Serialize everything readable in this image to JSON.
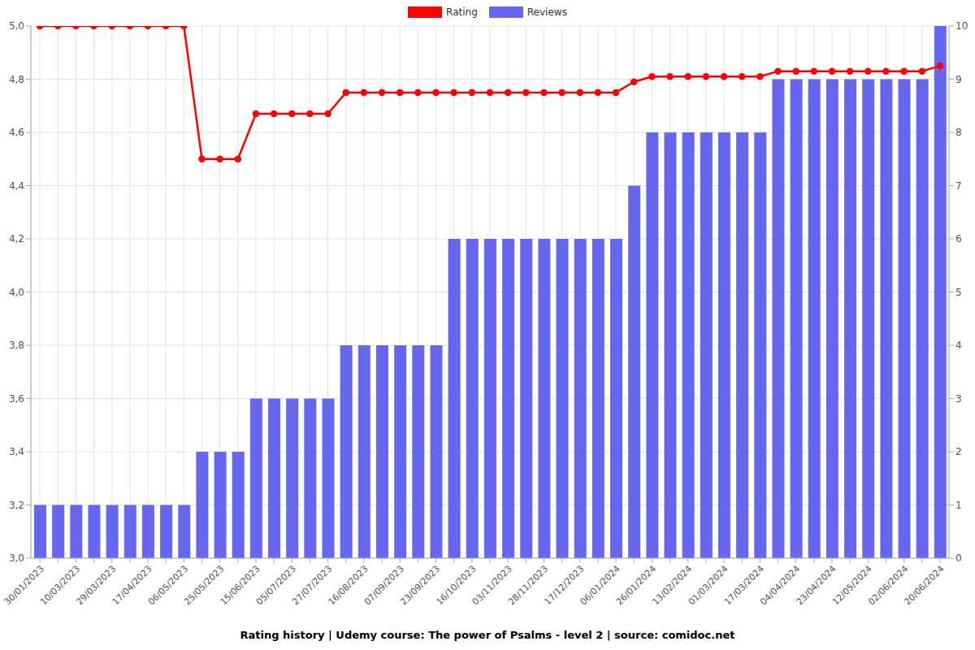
{
  "chart_data": {
    "type": "bar",
    "title": "Rating history | Udemy course: The power of Psalms - level 2 | source: comidoc.net",
    "categories": [
      "30/01/2023",
      null,
      "10/03/2023",
      null,
      "29/03/2023",
      null,
      "17/04/2023",
      null,
      "06/05/2023",
      null,
      "25/05/2023",
      null,
      "15/06/2023",
      null,
      "05/07/2023",
      null,
      "27/07/2023",
      null,
      "16/08/2023",
      null,
      "07/09/2023",
      null,
      "23/09/2023",
      null,
      "16/10/2023",
      null,
      "03/11/2023",
      null,
      "28/11/2023",
      null,
      "17/12/2023",
      null,
      "06/01/2024",
      null,
      "26/01/2024",
      null,
      "13/02/2024",
      null,
      "01/03/2024",
      null,
      "17/03/2024",
      null,
      "04/04/2024",
      null,
      "23/04/2024",
      null,
      "12/05/2024",
      null,
      "02/06/2024",
      null,
      "20/06/2024"
    ],
    "series": [
      {
        "name": "Rating",
        "type": "line",
        "color": "#ff0000",
        "marker": "o",
        "values": [
          5,
          5,
          5,
          5,
          5,
          5,
          5,
          5,
          5,
          4.5,
          4.5,
          4.5,
          4.67,
          4.67,
          4.67,
          4.67,
          4.67,
          4.75,
          4.75,
          4.75,
          4.75,
          4.75,
          4.75,
          4.75,
          4.75,
          4.75,
          4.75,
          4.75,
          4.75,
          4.75,
          4.75,
          4.75,
          4.75,
          4.79,
          4.81,
          4.81,
          4.81,
          4.81,
          4.81,
          4.81,
          4.81,
          4.83,
          4.83,
          4.83,
          4.83,
          4.83,
          4.83,
          4.83,
          4.83,
          4.83,
          4.85
        ]
      },
      {
        "name": "Reviews",
        "type": "bar",
        "color": "#6666ee",
        "axis": "y2",
        "values": [
          1,
          1,
          1,
          1,
          1,
          1,
          1,
          1,
          1,
          2,
          2,
          2,
          3,
          3,
          3,
          3,
          3,
          4,
          4,
          4,
          4,
          4,
          4,
          6,
          6,
          6,
          6,
          6,
          6,
          6,
          6,
          6,
          6,
          7,
          8,
          8,
          8,
          8,
          8,
          8,
          8,
          9,
          9,
          9,
          9,
          9,
          9,
          9,
          9,
          9,
          10
        ]
      }
    ],
    "ylim": [
      3,
      5
    ],
    "yticks": [
      {
        "value": 3,
        "label": "3,0"
      },
      {
        "value": 3.2,
        "label": "3,2"
      },
      {
        "value": 3.4,
        "label": "3,4"
      },
      {
        "value": 3.6,
        "label": "3,6"
      },
      {
        "value": 3.8,
        "label": "3,8"
      },
      {
        "value": 4,
        "label": "4,0"
      },
      {
        "value": 4.2,
        "label": "4,2"
      },
      {
        "value": 4.4,
        "label": "4,4"
      },
      {
        "value": 4.6,
        "label": "4,6"
      },
      {
        "value": 4.8,
        "label": "4,8"
      },
      {
        "value": 5,
        "label": "5,0"
      }
    ],
    "y2lim": [
      0,
      10
    ],
    "y2ticks": [
      0,
      1,
      2,
      3,
      4,
      5,
      6,
      7,
      8,
      9,
      10
    ],
    "grid": true,
    "legend": "top"
  }
}
